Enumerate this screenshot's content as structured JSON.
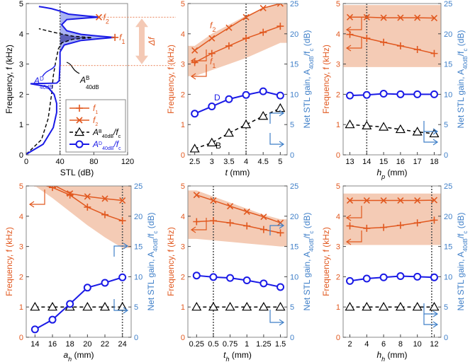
{
  "colors": {
    "orange": "#e1581f",
    "blue": "#1a1ae6",
    "band": "#f2c2a8",
    "black": "#000000",
    "axis_right": "#3f7fc8",
    "fill_light": "#a9b3f2",
    "fill_dark": "#5b5fb8",
    "delta_arrow": "#f4c9b5",
    "dotted": "#555555"
  },
  "chart_data": [
    {
      "id": "a",
      "type": "line",
      "xlabel": "STL (dB)",
      "ylabel": "Frequency, f (kHz)",
      "xlim": [
        0,
        120
      ],
      "ylim": [
        0,
        5
      ],
      "xticks": [
        "0",
        "40",
        "80",
        "120"
      ],
      "yticks": [
        "0",
        "1",
        "2",
        "3",
        "4",
        "5"
      ],
      "series": [
        {
          "name": "f1",
          "points": [
            [
              105,
              3.88
            ]
          ]
        },
        {
          "name": "f2",
          "points": [
            [
              86,
              4.55
            ]
          ]
        }
      ],
      "curves": {
        "blue_solid": [
          [
            [
              0,
              0.02
            ],
            [
              20,
              0.35
            ],
            [
              32,
              0.9
            ],
            [
              36,
              1.4
            ],
            [
              36,
              1.7
            ],
            [
              33,
              2.0
            ],
            [
              25,
              2.25
            ],
            [
              5,
              2.35
            ],
            [
              36,
              2.37
            ],
            [
              39,
              2.45
            ],
            [
              40,
              3.0
            ],
            [
              40,
              3.4
            ],
            [
              45,
              3.63
            ],
            [
              65,
              3.78
            ],
            [
              88,
              3.84
            ],
            [
              105,
              3.88
            ],
            [
              88,
              3.92
            ],
            [
              65,
              3.98
            ],
            [
              48,
              4.1
            ],
            [
              42,
              4.3
            ],
            [
              48,
              4.47
            ],
            [
              75,
              4.53
            ],
            [
              86,
              4.55
            ],
            [
              75,
              4.58
            ],
            [
              50,
              4.65
            ],
            [
              40,
              4.75
            ],
            [
              30,
              4.83
            ],
            [
              20,
              4.88
            ],
            [
              15,
              4.9
            ]
          ]
        ],
        "black_dashed": [
          [
            [
              0,
              0.02
            ],
            [
              18,
              0.5
            ],
            [
              26,
              1.2
            ],
            [
              30,
              2.0
            ],
            [
              32,
              2.6
            ],
            [
              35,
              3.1
            ],
            [
              38,
              3.5
            ],
            [
              42,
              3.7
            ],
            [
              55,
              3.82
            ],
            [
              78,
              3.87
            ],
            [
              55,
              3.92
            ],
            [
              40,
              4.0
            ],
            [
              25,
              4.1
            ],
            [
              15,
              4.17
            ]
          ]
        ],
        "dotted_x": 40
      },
      "annotations": {
        "A_D": "A",
        "A_D_sup": "D",
        "A_D_sub": "40dB",
        "A_B": "A",
        "A_B_sup": "B",
        "A_B_sub": "40dB",
        "delta_f": "Δf"
      },
      "legend": {
        "position": "lower-right",
        "items": [
          {
            "key": "f1",
            "label": "f",
            "sub": "1",
            "sup": ""
          },
          {
            "key": "f2",
            "label": "f",
            "sub": "2",
            "sup": ""
          },
          {
            "key": "AB",
            "label": "A",
            "sup": "B",
            "sub": "40dB",
            "tail": "/f",
            "tail_sub": "c"
          },
          {
            "key": "AD",
            "label": "A",
            "sup": "D",
            "sub": "40dB",
            "tail": "/f",
            "tail_sub": "c"
          }
        ]
      }
    },
    {
      "id": "b",
      "type": "line",
      "xlabel_main": "t",
      "xlabel_unit": " (mm)",
      "ylabel": "Frequency, f (kHz)",
      "y2label": "Net STL gain, A",
      "y2label_sub": "40dB",
      "y2label_tail": "/f",
      "y2label_tail_sub": "c",
      "y2label_unit": " (dB)",
      "x": [
        2.5,
        3,
        3.5,
        4,
        4.5,
        5
      ],
      "xticks": [
        "2.5",
        "3",
        "3.5",
        "4",
        "4.5",
        "5"
      ],
      "xlim": [
        2.3,
        5.2
      ],
      "ylim": [
        0,
        5
      ],
      "y2lim": [
        0,
        25
      ],
      "yticks": [
        "0",
        "1",
        "2",
        "3",
        "4",
        "5"
      ],
      "y2ticks": [
        "0",
        "5",
        "10",
        "15",
        "20",
        "25"
      ],
      "dotted_x": 4,
      "band": {
        "upper": [
          3.6,
          4.0,
          4.3,
          4.6,
          4.85,
          5.0
        ],
        "lower": [
          2.6,
          2.8,
          3.0,
          3.2,
          3.45,
          3.7
        ]
      },
      "series": [
        {
          "name": "f1",
          "values": [
            3.05,
            3.35,
            3.6,
            3.85,
            4.05,
            4.25
          ]
        },
        {
          "name": "f2",
          "values": [
            3.45,
            3.85,
            4.2,
            4.55,
            4.85,
            5.0
          ]
        },
        {
          "name": "AB",
          "values": [
            1.0,
            2.0,
            3.6,
            5.0,
            6.4,
            7.7
          ]
        },
        {
          "name": "AD",
          "values": [
            6.8,
            8.0,
            9.2,
            9.9,
            10.5,
            9.8
          ]
        }
      ],
      "labels": {
        "f1": "f",
        "f1_sub": "1",
        "f2": "f",
        "f2_sub": "2",
        "B": "B",
        "D": "D"
      }
    },
    {
      "id": "c",
      "type": "line",
      "xlabel_main": "h",
      "xlabel_sub": "p",
      "xlabel_unit": " (mm)",
      "ylabel": "Frequency, f (kHz)",
      "y2label": "Net STL gain, A",
      "y2label_sub": "40dB",
      "y2label_tail": "/f",
      "y2label_tail_sub": "c",
      "y2label_unit": " (dB)",
      "x": [
        13,
        14,
        15,
        16,
        17,
        18
      ],
      "xticks": [
        "13",
        "14",
        "15",
        "16",
        "17",
        "18"
      ],
      "xlim": [
        12.6,
        18.4
      ],
      "ylim": [
        0,
        5
      ],
      "y2lim": [
        0,
        25
      ],
      "yticks": [
        "0",
        "1",
        "2",
        "3",
        "4",
        "5"
      ],
      "y2ticks": [
        "0",
        "5",
        "10",
        "15",
        "20",
        "25"
      ],
      "dotted_x": 14,
      "band": {
        "upper": [
          4.95,
          4.95,
          4.95,
          4.95,
          4.95,
          4.95
        ],
        "lower": [
          2.9,
          2.9,
          2.9,
          2.9,
          2.9,
          2.9
        ]
      },
      "series": [
        {
          "name": "f1",
          "values": [
            3.98,
            3.85,
            3.72,
            3.6,
            3.48,
            3.35
          ]
        },
        {
          "name": "f2",
          "values": [
            4.55,
            4.55,
            4.53,
            4.53,
            4.53,
            4.52
          ]
        },
        {
          "name": "AB",
          "values": [
            5.0,
            4.8,
            4.6,
            4.2,
            3.8,
            3.5
          ]
        },
        {
          "name": "AD",
          "values": [
            9.8,
            9.9,
            10.1,
            10.0,
            10.0,
            10.0
          ]
        }
      ]
    },
    {
      "id": "d",
      "type": "line",
      "xlabel_main": "a",
      "xlabel_sub": "h",
      "xlabel_unit": " (mm)",
      "ylabel": "Frequency, f (kHz)",
      "y2label": "Net STL gain, A",
      "y2label_sub": "40dB",
      "y2label_tail": "/f",
      "y2label_tail_sub": "c",
      "y2label_unit": " (dB)",
      "x": [
        14,
        16,
        18,
        20,
        22,
        24
      ],
      "xticks": [
        "14",
        "16",
        "18",
        "20",
        "22",
        "24"
      ],
      "xlim": [
        13.0,
        25.0
      ],
      "ylim": [
        0,
        5
      ],
      "y2lim": [
        0,
        25
      ],
      "yticks": [
        "0",
        "1",
        "2",
        "3",
        "4",
        "5"
      ],
      "y2ticks": [
        "0",
        "5",
        "10",
        "15",
        "20",
        "25"
      ],
      "dotted_x": 24,
      "band": {
        "upper": [
          5.0,
          5.0,
          5.0,
          5.0,
          5.0,
          5.0
        ],
        "lower": [
          5.0,
          4.6,
          4.15,
          3.7,
          3.3,
          2.95
        ]
      },
      "series": [
        {
          "name": "f1",
          "values": [
            5.1,
            4.95,
            4.7,
            4.3,
            4.05,
            3.85
          ]
        },
        {
          "name": "f2",
          "values": [
            5.3,
            5.05,
            4.75,
            4.65,
            4.58,
            4.52
          ]
        },
        {
          "name": "AB",
          "values": [
            5.0,
            5.0,
            5.0,
            5.0,
            5.0,
            5.0
          ]
        },
        {
          "name": "AD",
          "values": [
            1.3,
            2.9,
            5.5,
            8.2,
            9.0,
            9.9
          ]
        }
      ]
    },
    {
      "id": "e",
      "type": "line",
      "xlabel_main": "t",
      "xlabel_sub": "h",
      "xlabel_unit": " (mm)",
      "ylabel": "Frequency, f (kHz)",
      "y2label": "Net STL gain, A",
      "y2label_sub": "40dB",
      "y2label_tail": "/f",
      "y2label_tail_sub": "c",
      "y2label_unit": " (dB)",
      "x": [
        0.25,
        0.5,
        0.75,
        1.0,
        1.25,
        1.5
      ],
      "xticks": [
        "0.25",
        "0.5",
        "0.75",
        "1",
        "1.25",
        "1.5"
      ],
      "xlim": [
        0.12,
        1.6
      ],
      "ylim": [
        0,
        5
      ],
      "y2lim": [
        0,
        25
      ],
      "yticks": [
        "0",
        "1",
        "2",
        "3",
        "4",
        "5"
      ],
      "y2ticks": [
        "0",
        "5",
        "10",
        "15",
        "20",
        "25"
      ],
      "dotted_x": 0.5,
      "band": {
        "upper": [
          4.85,
          4.65,
          4.45,
          4.25,
          4.05,
          3.9
        ],
        "lower": [
          3.25,
          3.2,
          3.15,
          3.1,
          3.05,
          3.0
        ]
      },
      "series": [
        {
          "name": "f1",
          "values": [
            3.82,
            3.85,
            3.78,
            3.68,
            3.56,
            3.45
          ]
        },
        {
          "name": "f2",
          "values": [
            4.7,
            4.52,
            4.33,
            4.15,
            3.98,
            3.78
          ]
        },
        {
          "name": "AB",
          "values": [
            5.0,
            5.0,
            5.0,
            5.0,
            5.0,
            5.0
          ]
        },
        {
          "name": "AD",
          "values": [
            10.2,
            9.95,
            9.8,
            9.4,
            8.9,
            8.3
          ]
        }
      ]
    },
    {
      "id": "f",
      "type": "line",
      "xlabel_main": "h",
      "xlabel_sub": "h",
      "xlabel_unit": " (mm)",
      "ylabel": "Frequency, f (kHz)",
      "y2label": "Net STL gain, A",
      "y2label_sub": "40dB",
      "y2label_tail": "/f",
      "y2label_tail_sub": "c",
      "y2label_unit": " (dB)",
      "x": [
        2,
        4,
        6,
        8,
        10,
        12
      ],
      "xticks": [
        "2",
        "4",
        "6",
        "8",
        "10",
        "12"
      ],
      "xlim": [
        1.2,
        12.8
      ],
      "ylim": [
        0,
        5
      ],
      "y2lim": [
        0,
        25
      ],
      "yticks": [
        "0",
        "1",
        "2",
        "3",
        "4",
        "5"
      ],
      "y2ticks": [
        "0",
        "5",
        "10",
        "15",
        "20",
        "25"
      ],
      "dotted_x": 11.7,
      "band": {
        "upper": [
          4.75,
          4.75,
          4.75,
          4.75,
          4.75,
          4.75
        ],
        "lower": [
          3.05,
          3.05,
          3.05,
          3.05,
          3.05,
          3.05
        ]
      },
      "series": [
        {
          "name": "f1",
          "values": [
            3.68,
            3.6,
            3.63,
            3.7,
            3.78,
            3.87
          ]
        },
        {
          "name": "f2",
          "values": [
            4.52,
            4.52,
            4.52,
            4.52,
            4.52,
            4.53
          ]
        },
        {
          "name": "AB",
          "values": [
            5.0,
            5.0,
            5.0,
            5.0,
            5.0,
            5.0
          ]
        },
        {
          "name": "AD",
          "values": [
            9.3,
            9.7,
            9.9,
            10.1,
            10.0,
            9.9
          ]
        }
      ]
    }
  ]
}
